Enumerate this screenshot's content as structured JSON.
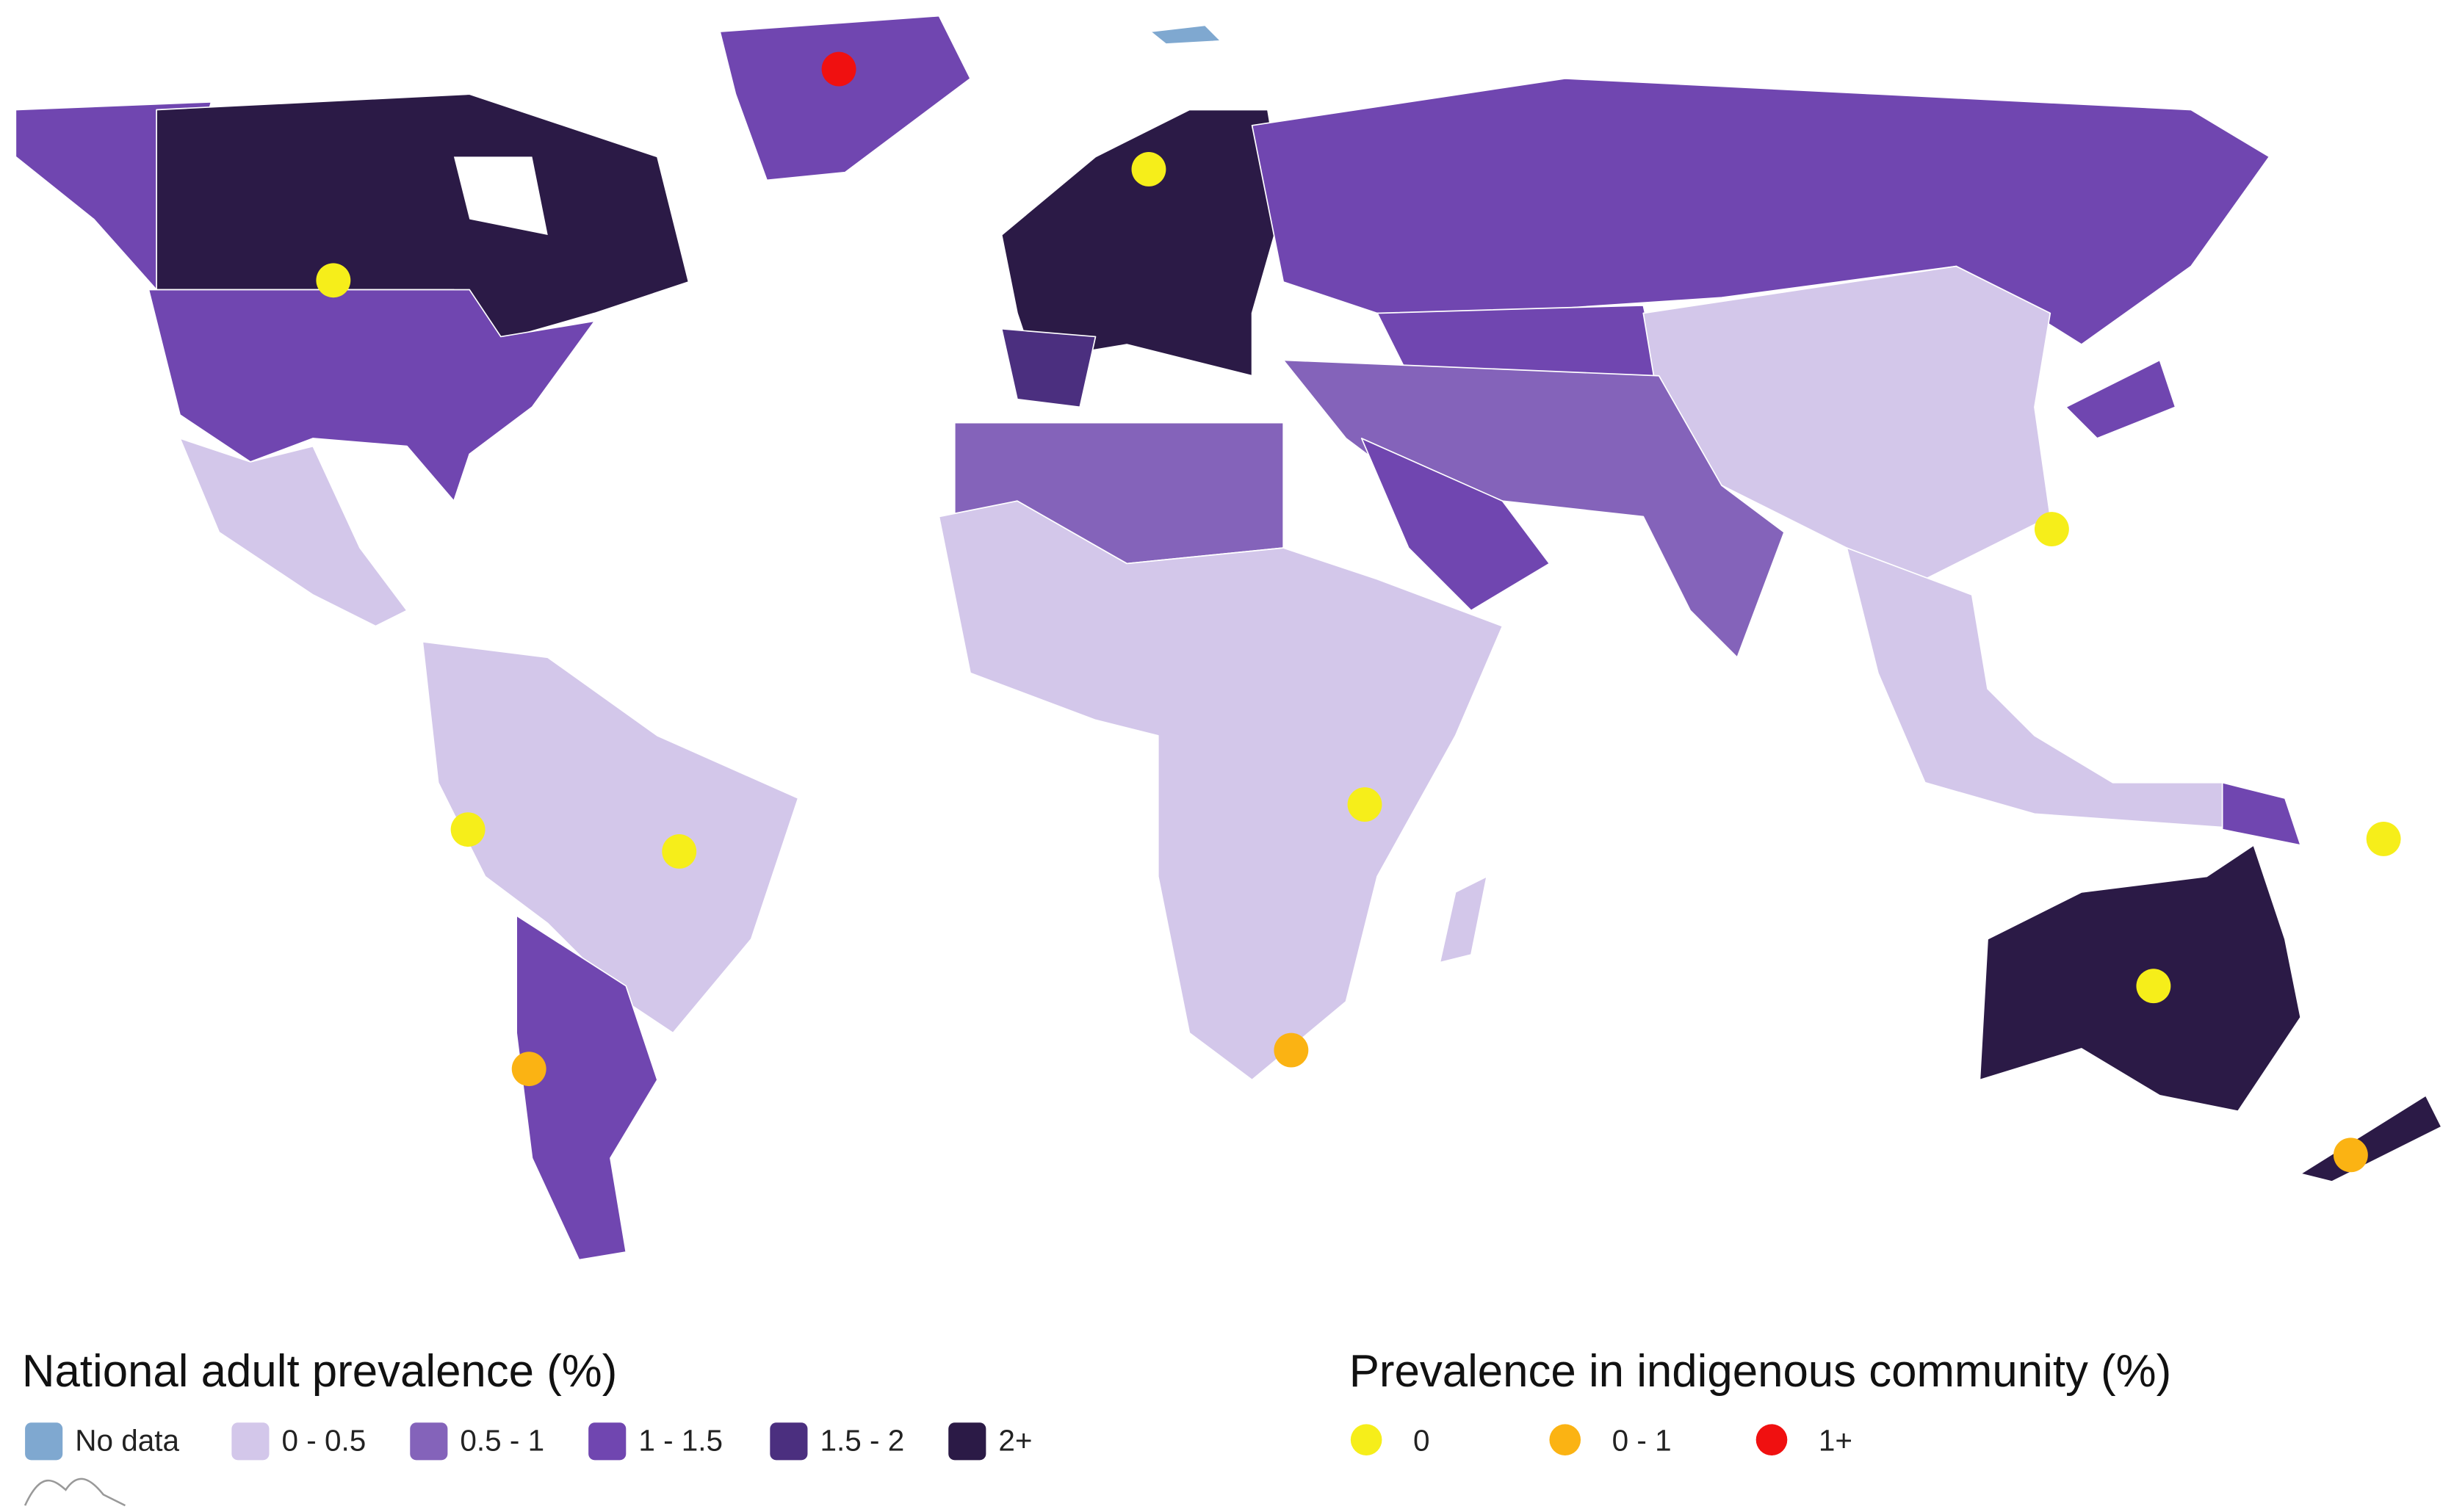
{
  "legend_national": {
    "title": "National adult prevalence (%)",
    "items": [
      {
        "label": "No data",
        "color": "#7fa8d0"
      },
      {
        "label": "0 - 0.5",
        "color": "#d3c7ea"
      },
      {
        "label": "0.5 - 1",
        "color": "#8463ba"
      },
      {
        "label": "1 - 1.5",
        "color": "#7046b0"
      },
      {
        "label": "1.5 - 2",
        "color": "#4b2f7f"
      },
      {
        "label": "2+",
        "color": "#2b1a46"
      }
    ]
  },
  "legend_indigenous": {
    "title": "Prevalence in indigenous community (%)",
    "items": [
      {
        "label": "0",
        "color": "#f6ee1a"
      },
      {
        "label": "0 - 1",
        "color": "#fbb313"
      },
      {
        "label": "1+",
        "color": "#f01010"
      }
    ]
  }
}
